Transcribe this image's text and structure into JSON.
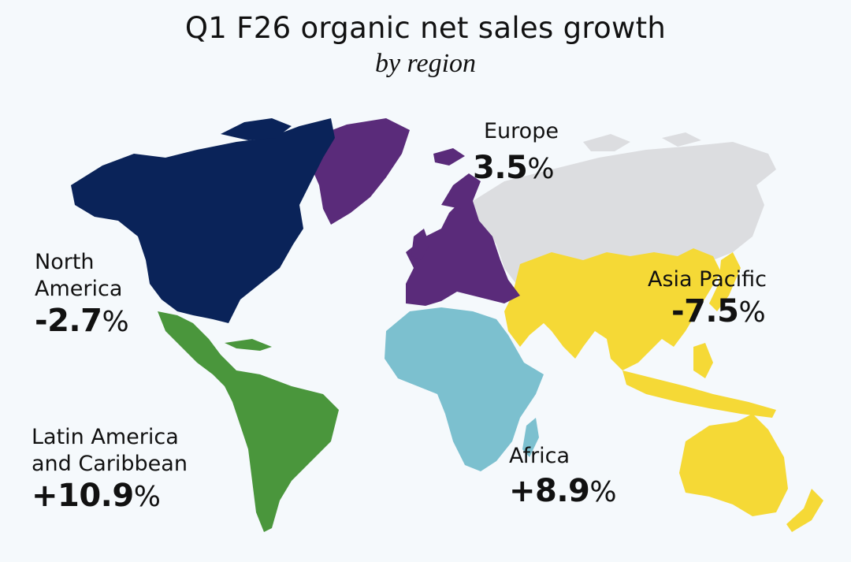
{
  "title": "Q1 F26 organic net sales growth",
  "subtitle": "by region",
  "regions": [
    {
      "key": "north_america",
      "name_lines": [
        "North",
        "America"
      ],
      "value": "-2.7",
      "unit": "%",
      "color": "#0a2359"
    },
    {
      "key": "latin_america",
      "name_lines": [
        "Latin America",
        "and Caribbean"
      ],
      "value": "+10.9",
      "unit": "%",
      "color": "#4a963c"
    },
    {
      "key": "europe",
      "name_lines": [
        "Europe"
      ],
      "value": "3.5",
      "unit": "%",
      "color": "#5a2b7a"
    },
    {
      "key": "africa",
      "name_lines": [
        "Africa"
      ],
      "value": "+8.9",
      "unit": "%",
      "color": "#7cc0cf"
    },
    {
      "key": "asia_pacific",
      "name_lines": [
        "Asia Pacific"
      ],
      "value": "-7.5",
      "unit": "%",
      "color": "#f5d936"
    },
    {
      "key": "other",
      "name_lines": [],
      "value": "",
      "unit": "",
      "color": "#dcdde0"
    }
  ]
}
